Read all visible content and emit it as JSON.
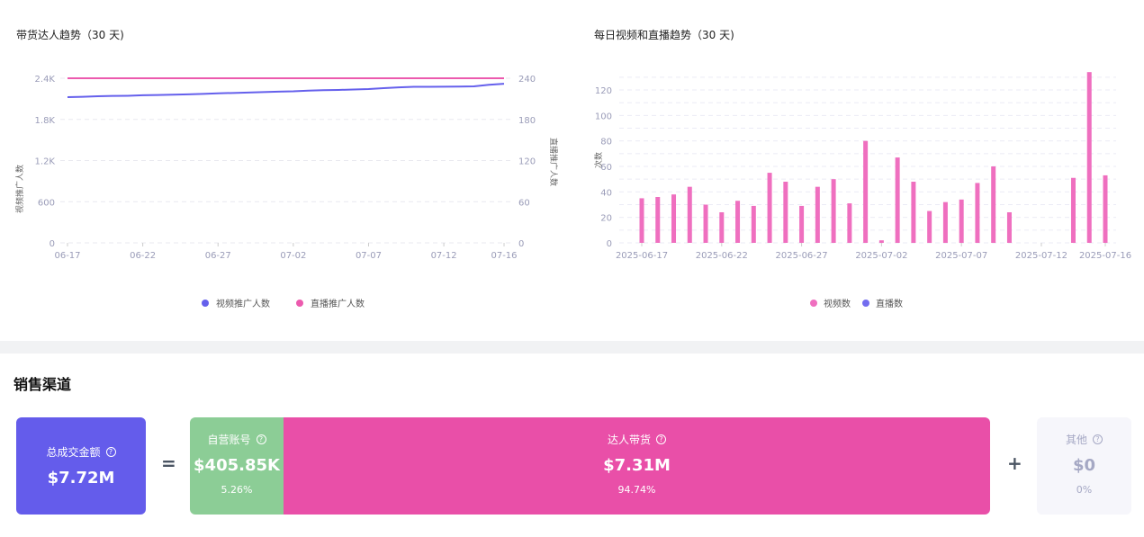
{
  "chart_data": [
    {
      "type": "line",
      "title": "带货达人趋势（30 天)",
      "ylabel_left": "视频推广人数",
      "ylabel_right": "直播推广人数",
      "x": [
        "06-17",
        "06-18",
        "06-19",
        "06-20",
        "06-21",
        "06-22",
        "06-23",
        "06-24",
        "06-25",
        "06-26",
        "06-27",
        "06-28",
        "06-29",
        "06-30",
        "07-01",
        "07-02",
        "07-03",
        "07-04",
        "07-05",
        "07-06",
        "07-07",
        "07-08",
        "07-09",
        "07-10",
        "07-11",
        "07-12",
        "07-13",
        "07-14",
        "07-15",
        "07-16"
      ],
      "xticks": [
        "06-17",
        "06-22",
        "06-27",
        "07-02",
        "07-07",
        "07-12",
        "07-16"
      ],
      "yticks_left": [
        "0",
        "600",
        "1.2K",
        "1.8K",
        "2.4K"
      ],
      "yticks_right": [
        "0",
        "60",
        "120",
        "180",
        "240"
      ],
      "ylim_left": [
        0,
        2400
      ],
      "ylim_right": [
        0,
        240
      ],
      "grid": true,
      "legend_position": "bottom",
      "series": [
        {
          "name": "视频推广人数",
          "axis": "left",
          "color": "#6560ec",
          "values": [
            2125,
            2130,
            2138,
            2142,
            2145,
            2152,
            2156,
            2160,
            2166,
            2172,
            2180,
            2186,
            2192,
            2198,
            2205,
            2210,
            2220,
            2226,
            2230,
            2236,
            2242,
            2255,
            2268,
            2275,
            2276,
            2277,
            2278,
            2282,
            2305,
            2320
          ]
        },
        {
          "name": "直播推广人数",
          "axis": "right",
          "color": "#ec5aae",
          "values": [
            240,
            240,
            240,
            240,
            240,
            240,
            240,
            240,
            240,
            240,
            240,
            240,
            240,
            240,
            240,
            240,
            240,
            240,
            240,
            240,
            240,
            240,
            240,
            240,
            240,
            240,
            240,
            240,
            240,
            240
          ]
        }
      ]
    },
    {
      "type": "bar",
      "title": "每日视频和直播趋势（30 天)",
      "ylabel": "次数",
      "x": [
        "2025-06-17",
        "2025-06-18",
        "2025-06-19",
        "2025-06-20",
        "2025-06-21",
        "2025-06-22",
        "2025-06-23",
        "2025-06-24",
        "2025-06-25",
        "2025-06-26",
        "2025-06-27",
        "2025-06-28",
        "2025-06-29",
        "2025-06-30",
        "2025-07-01",
        "2025-07-02",
        "2025-07-03",
        "2025-07-04",
        "2025-07-05",
        "2025-07-06",
        "2025-07-07",
        "2025-07-08",
        "2025-07-09",
        "2025-07-10",
        "2025-07-11",
        "2025-07-12",
        "2025-07-13",
        "2025-07-14",
        "2025-07-15",
        "2025-07-16"
      ],
      "xticks": [
        "2025-06-17",
        "2025-06-22",
        "2025-06-27",
        "2025-07-02",
        "2025-07-07",
        "2025-07-12",
        "2025-07-16"
      ],
      "yticks": [
        "0",
        "20",
        "40",
        "60",
        "80",
        "100",
        "120"
      ],
      "ylim": [
        0,
        130
      ],
      "grid": true,
      "legend_position": "bottom",
      "series": [
        {
          "name": "视频数",
          "color": "#ef6fbf",
          "values": [
            35,
            36,
            38,
            44,
            30,
            24,
            33,
            29,
            55,
            48,
            29,
            44,
            50,
            31,
            80,
            2,
            67,
            48,
            25,
            32,
            34,
            47,
            60,
            24,
            0,
            0,
            0,
            51,
            134,
            53
          ]
        },
        {
          "name": "直播数",
          "color": "#736def",
          "values": [
            0,
            0,
            0,
            0,
            0,
            0,
            0,
            0,
            0,
            0,
            0,
            0,
            0,
            0,
            0,
            0,
            0,
            0,
            0,
            0,
            0,
            0,
            0,
            0,
            0,
            0,
            0,
            0,
            0,
            0
          ]
        }
      ]
    }
  ],
  "sales": {
    "title": "销售渠道",
    "total": {
      "label": "总成交金额",
      "value": "$7.72M",
      "color": "#645ceb"
    },
    "equals": "=",
    "plus": "+",
    "self": {
      "label": "自营账号",
      "value": "$405.85K",
      "pct": "5.26%",
      "share": 5.26,
      "color": "#8ccd96"
    },
    "creator": {
      "label": "达人带货",
      "value": "$7.31M",
      "pct": "94.74%",
      "share": 94.74,
      "color": "#e94fa8"
    },
    "other": {
      "label": "其他",
      "value": "$0",
      "pct": "0%",
      "color": "#f6f6fb"
    },
    "help_icon": "question-circle-icon"
  }
}
